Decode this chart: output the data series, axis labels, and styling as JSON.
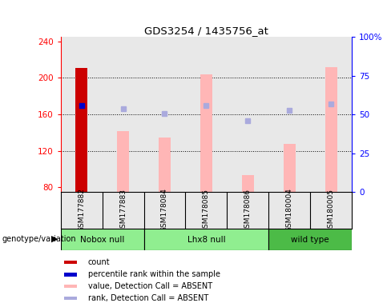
{
  "title": "GDS3254 / 1435756_at",
  "samples": [
    "GSM177882",
    "GSM177883",
    "GSM178084",
    "GSM178085",
    "GSM178086",
    "GSM180004",
    "GSM180005"
  ],
  "ylim_left": [
    75,
    245
  ],
  "ylim_right": [
    0,
    100
  ],
  "yticks_left": [
    80,
    120,
    160,
    200,
    240
  ],
  "yticks_right": [
    0,
    25,
    50,
    75,
    100
  ],
  "yticklabels_right": [
    "0",
    "25",
    "50",
    "75",
    "100%"
  ],
  "red_bar": {
    "index": 0,
    "value": 211,
    "color": "#cc0000"
  },
  "blue_dot": {
    "index": 0,
    "value": 170,
    "color": "#0000cc"
  },
  "pink_bars": {
    "indices": [
      1,
      2,
      3,
      4,
      5,
      6
    ],
    "values": [
      142,
      135,
      204,
      93,
      128,
      212
    ],
    "color": "#ffb6b6"
  },
  "lavender_dots": {
    "indices": [
      1,
      2,
      3,
      4,
      5,
      6
    ],
    "values": [
      166,
      161,
      170,
      153,
      164,
      171
    ],
    "color": "#aaaadd"
  },
  "groups_info": [
    {
      "label": "Nobox null",
      "start": 0,
      "end": 1,
      "color": "#90EE90"
    },
    {
      "label": "Lhx8 null",
      "start": 2,
      "end": 4,
      "color": "#90EE90"
    },
    {
      "label": "wild type",
      "start": 5,
      "end": 6,
      "color": "#4CBB47"
    }
  ],
  "legend_items": [
    {
      "label": "count",
      "color": "#cc0000"
    },
    {
      "label": "percentile rank within the sample",
      "color": "#0000cc"
    },
    {
      "label": "value, Detection Call = ABSENT",
      "color": "#ffb6b6"
    },
    {
      "label": "rank, Detection Call = ABSENT",
      "color": "#aaaadd"
    }
  ],
  "group_label": "genotype/variation",
  "bar_width": 0.28,
  "axis_bg_color": "#e8e8e8",
  "background_color": "#ffffff",
  "grid_dotted_at": [
    120,
    160,
    200
  ]
}
